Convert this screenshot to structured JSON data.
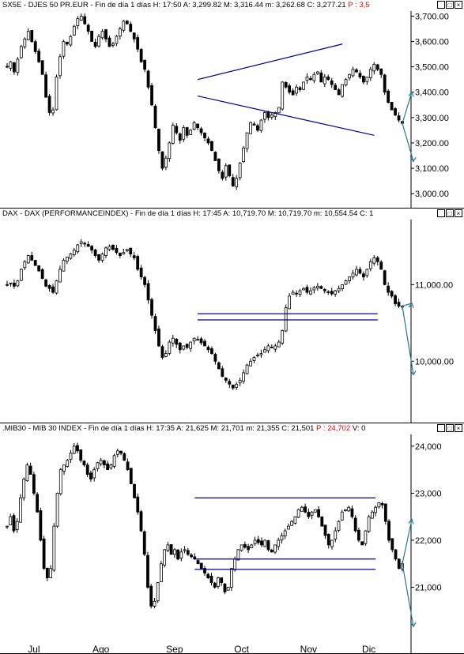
{
  "panels": [
    {
      "title_left": "SX5E - DJES 50 PR.EUR - Fin de día 1 días  H: 17:50  A: 3,299.82  M: 3,316.44  m: 3,262.68  C: 3,277.21",
      "title_red": "P : 3,5",
      "buttons": [
        "_",
        "□",
        "×"
      ]
    },
    {
      "title_left": "DAX - DAX (PERFORMANCEINDEX) - Fin de día 1 días  H: 17:45  A: 10,719.70  M: 10,719.70  m: 10,554.54  C: 1",
      "title_red": "",
      "buttons": [
        "_",
        "□",
        "×"
      ]
    },
    {
      "title_left": ".MIB30 - MIB 30 INDEX - Fin de día 1 días  H: 17:35  A: 21,625  M: 21,701  m: 21,355  C: 21,501",
      "title_red": "P : 24,702",
      "title_tail": "V: 0",
      "buttons": [
        "_",
        "□",
        "×"
      ]
    }
  ],
  "colors": {
    "candle": "#000000",
    "trendline": "#00008b",
    "arrow": "#2a7a8c"
  },
  "chart_data": [
    {
      "type": "candlestick",
      "title": "SX5E - DJES 50 PR.EUR",
      "y_ticks": [
        3000,
        3100,
        3200,
        3300,
        3400,
        3500,
        3600,
        3700
      ],
      "y_tick_labels": [
        "3,000.00",
        "3,100.00",
        "3,200.00",
        "3,300.00",
        "3,400.00",
        "3,500.00",
        "3,600.00",
        "3,700.00"
      ],
      "ylim": [
        2960,
        3720
      ],
      "x_labels": [
        "Jul",
        "Ago",
        "Sep",
        "Oct",
        "Nov",
        "Dic"
      ],
      "close_path": [
        3500,
        3520,
        3480,
        3530,
        3580,
        3610,
        3640,
        3600,
        3560,
        3520,
        3470,
        3380,
        3320,
        3330,
        3460,
        3540,
        3600,
        3590,
        3620,
        3660,
        3690,
        3700,
        3670,
        3640,
        3600,
        3580,
        3620,
        3640,
        3610,
        3580,
        3590,
        3620,
        3650,
        3680,
        3670,
        3640,
        3610,
        3570,
        3520,
        3490,
        3420,
        3350,
        3260,
        3170,
        3100,
        3140,
        3200,
        3270,
        3240,
        3210,
        3260,
        3230,
        3250,
        3280,
        3260,
        3240,
        3220,
        3200,
        3170,
        3130,
        3090,
        3060,
        3110,
        3070,
        3030,
        3060,
        3120,
        3180,
        3240,
        3280,
        3270,
        3250,
        3290,
        3320,
        3300,
        3310,
        3320,
        3340,
        3440,
        3420,
        3400,
        3390,
        3420,
        3410,
        3440,
        3460,
        3450,
        3470,
        3480,
        3440,
        3460,
        3450,
        3430,
        3410,
        3390,
        3430,
        3450,
        3470,
        3490,
        3480,
        3460,
        3440,
        3460,
        3490,
        3510,
        3490,
        3470,
        3400,
        3360,
        3330,
        3310,
        3290,
        3277
      ],
      "annotations": [
        {
          "kind": "trendline",
          "from": [
            54,
            3450
          ],
          "to": [
            95,
            3590
          ]
        },
        {
          "kind": "trendline",
          "from": [
            54,
            3385
          ],
          "to": [
            104,
            3230
          ]
        }
      ]
    },
    {
      "type": "candlestick",
      "title": "DAX - DAX (PERFORMANCEINDEX)",
      "y_ticks": [
        10000,
        11000
      ],
      "y_tick_labels": [
        "10,000.00",
        "11,000.00"
      ],
      "ylim": [
        9250,
        11850
      ],
      "x_labels": [
        "Jul",
        "Ago",
        "Sep",
        "Oct",
        "Nov",
        "Dic"
      ],
      "close_path": [
        11000,
        11020,
        10980,
        11050,
        11200,
        11300,
        11380,
        11320,
        11250,
        11180,
        11080,
        10980,
        10950,
        10900,
        11050,
        11200,
        11320,
        11360,
        11400,
        11450,
        11520,
        11560,
        11540,
        11500,
        11450,
        11380,
        11320,
        11400,
        11480,
        11500,
        11460,
        11420,
        11380,
        11420,
        11460,
        11400,
        11350,
        11200,
        11100,
        11000,
        10800,
        10600,
        10400,
        10200,
        10050,
        10100,
        10250,
        10300,
        10220,
        10150,
        10200,
        10180,
        10250,
        10300,
        10280,
        10240,
        10200,
        10150,
        10100,
        10000,
        9900,
        9800,
        9750,
        9700,
        9650,
        9700,
        9750,
        9850,
        9950,
        10000,
        10050,
        10080,
        10100,
        10150,
        10200,
        10180,
        10200,
        10250,
        10400,
        10700,
        10850,
        10900,
        10880,
        10920,
        10950,
        10900,
        10920,
        10960,
        10980,
        10950,
        10920,
        10900,
        10880,
        10920,
        10950,
        11000,
        11050,
        11100,
        11150,
        11200,
        11150,
        11100,
        11200,
        11300,
        11350,
        11300,
        11200,
        11000,
        10900,
        10850,
        10750,
        10720,
        10719
      ],
      "annotations": [
        {
          "kind": "hline",
          "value": 10620,
          "from": 54,
          "to": 105
        },
        {
          "kind": "hline",
          "value": 10540,
          "from": 54,
          "to": 105
        }
      ]
    },
    {
      "type": "candlestick",
      "title": ".MIB30 - MIB 30 INDEX",
      "y_ticks": [
        21000,
        22000,
        23000,
        24000
      ],
      "y_tick_labels": [
        "21,000",
        "22,000",
        "23,000",
        "24,000"
      ],
      "ylim": [
        19950,
        24250
      ],
      "x_labels": [
        "Jul",
        "Ago",
        "Sep",
        "Oct",
        "Nov",
        "Dic"
      ],
      "close_path": [
        22300,
        22500,
        22200,
        22400,
        22900,
        23300,
        23600,
        23400,
        23000,
        22600,
        22000,
        21400,
        21200,
        21400,
        22300,
        23000,
        23500,
        23600,
        23700,
        23850,
        24000,
        23900,
        23700,
        23600,
        23400,
        23300,
        23500,
        23650,
        23700,
        23600,
        23500,
        23600,
        23800,
        23900,
        23850,
        23700,
        23500,
        23200,
        22900,
        22600,
        22200,
        21700,
        21000,
        20600,
        20700,
        21100,
        21500,
        21800,
        21900,
        21700,
        21800,
        21600,
        21750,
        21800,
        21700,
        21650,
        21600,
        21500,
        21400,
        21300,
        21200,
        21100,
        21000,
        21200,
        21100,
        20900,
        21000,
        21400,
        21600,
        21800,
        21900,
        21850,
        21800,
        21900,
        22000,
        21950,
        21900,
        22000,
        21800,
        21750,
        21900,
        22000,
        22100,
        22200,
        22300,
        22400,
        22500,
        22650,
        22700,
        22600,
        22500,
        22600,
        22650,
        22500,
        22300,
        22100,
        21900,
        22000,
        22200,
        22400,
        22600,
        22650,
        22700,
        22500,
        22200,
        22000,
        21900,
        22200,
        22500,
        22600,
        22700,
        22800,
        22750,
        22400,
        22000,
        21800,
        21600,
        21400,
        21501
      ],
      "annotations": [
        {
          "kind": "hline",
          "value": 22900,
          "from": 56,
          "to": 110
        },
        {
          "kind": "hline",
          "value": 21600,
          "from": 56,
          "to": 110
        },
        {
          "kind": "hline",
          "value": 21380,
          "from": 56,
          "to": 110
        }
      ]
    }
  ]
}
